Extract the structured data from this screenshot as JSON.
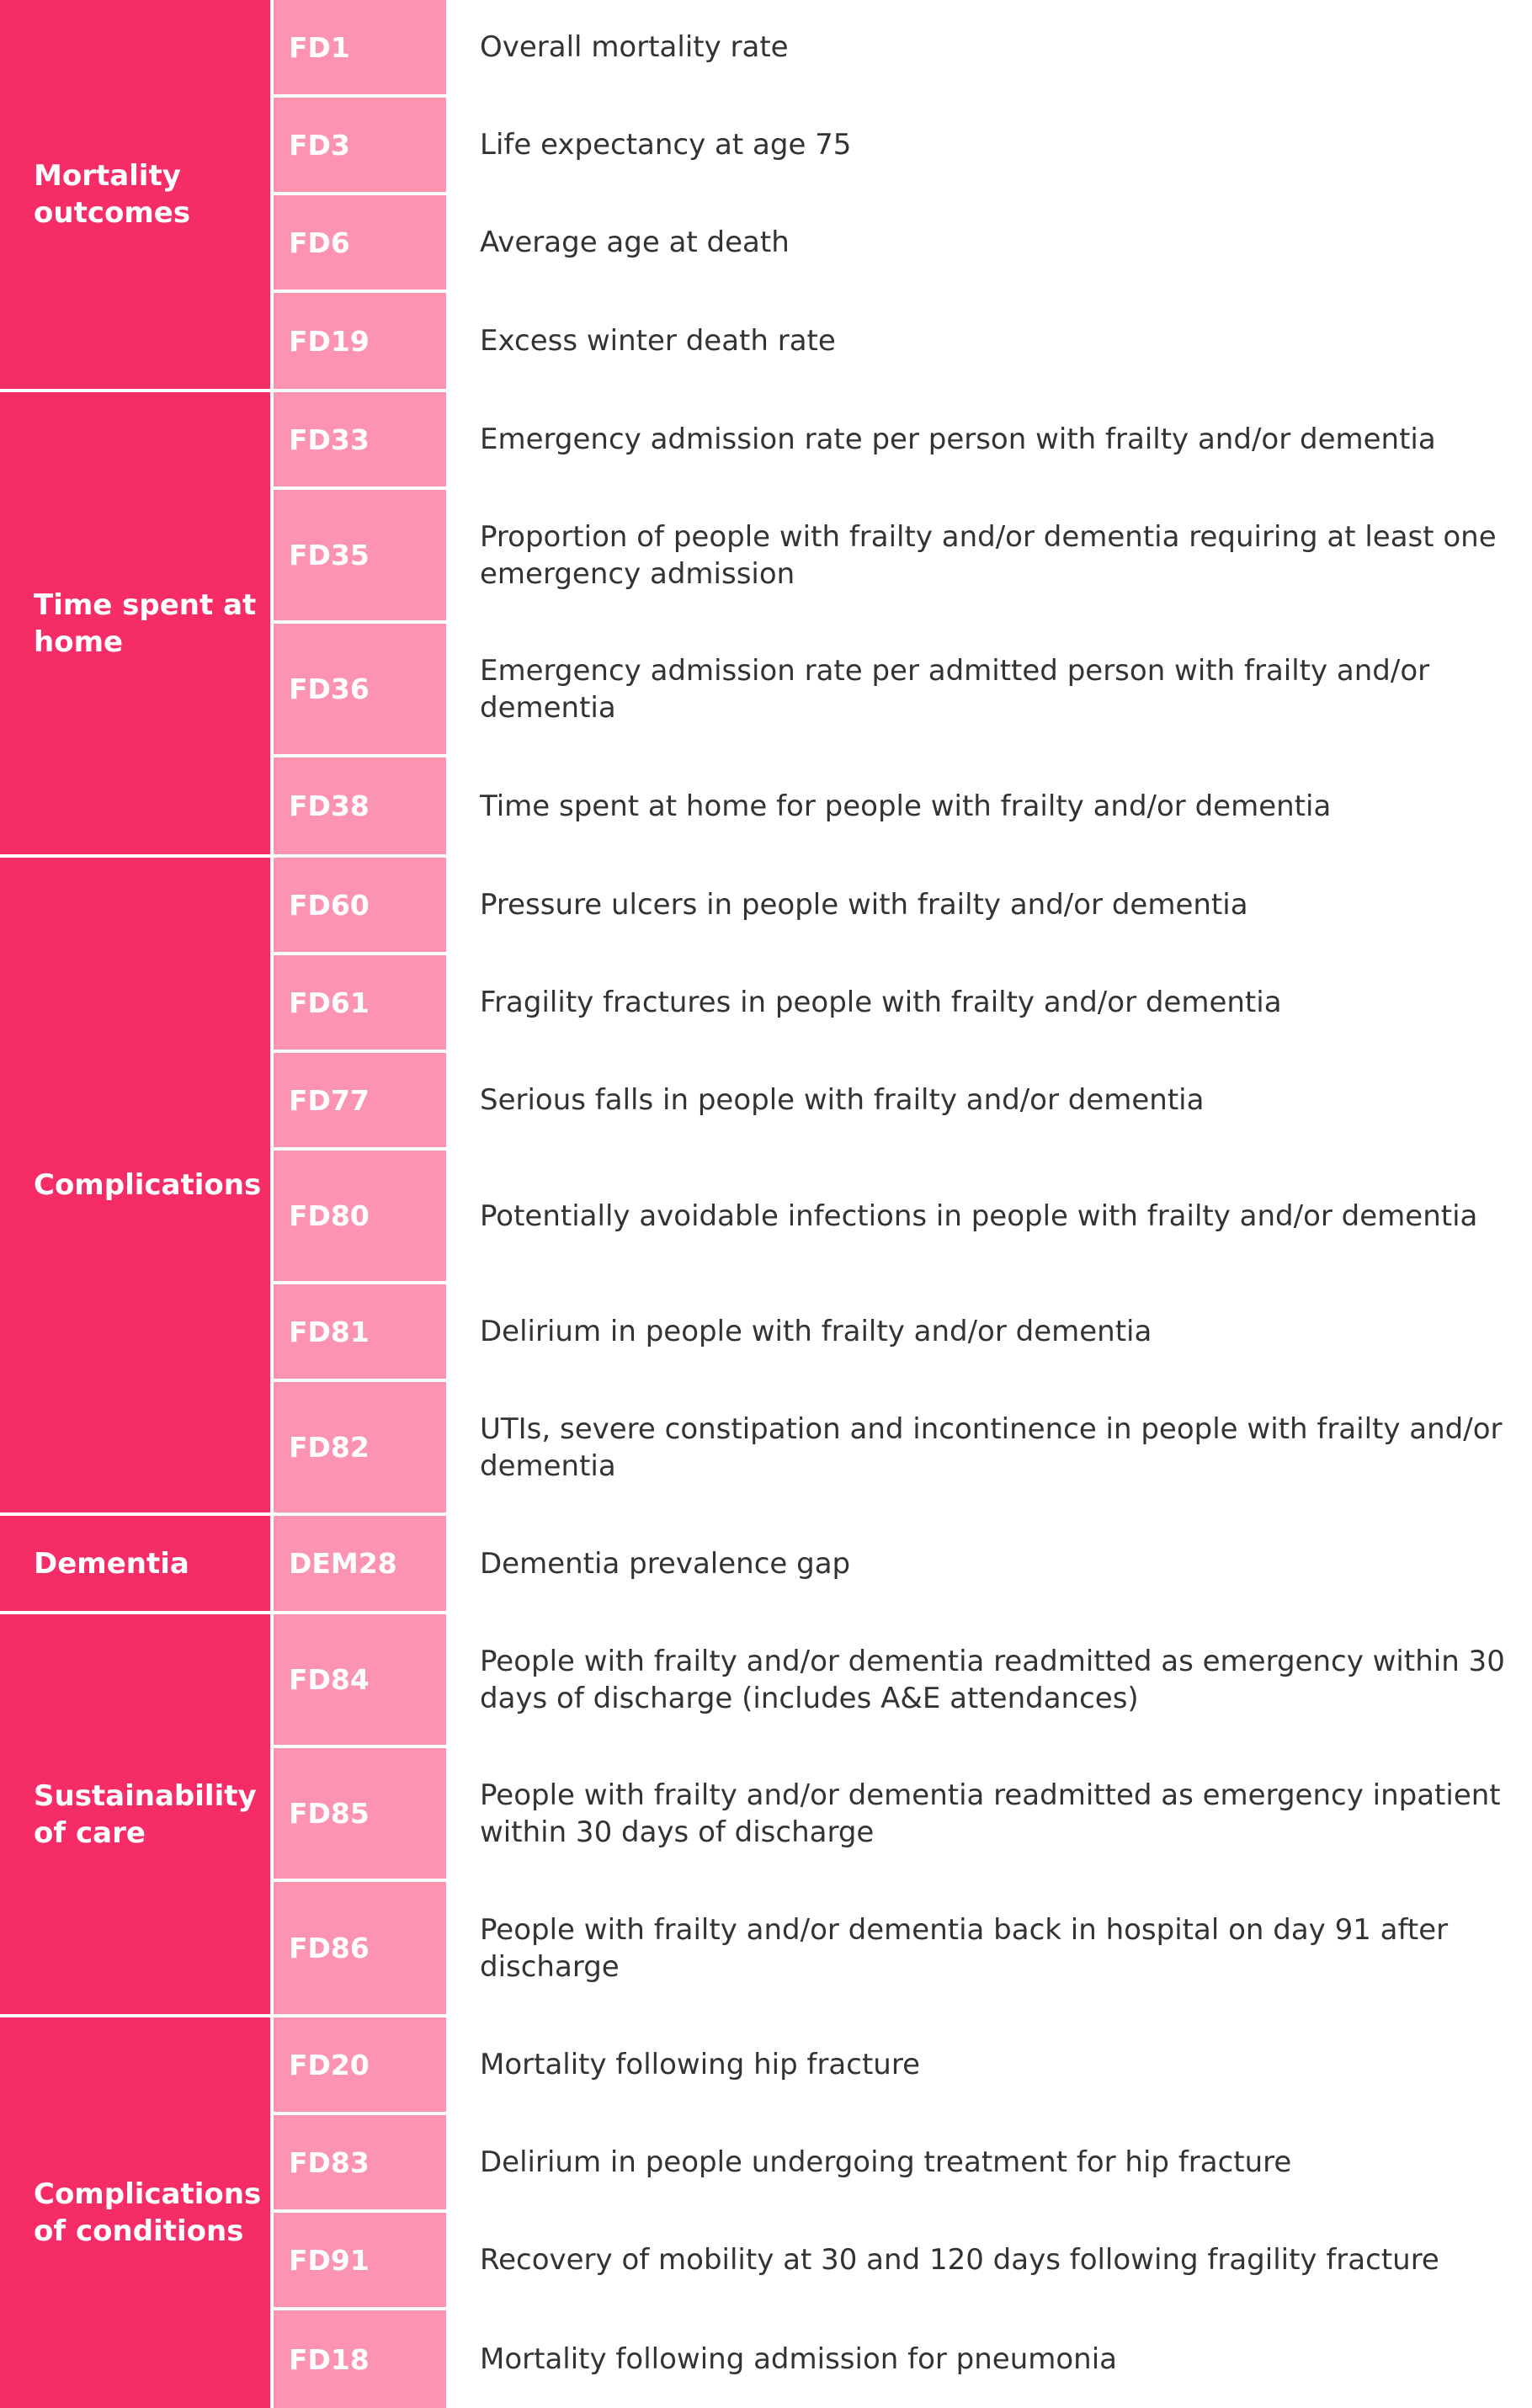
{
  "groups": [
    {
      "label": "Mortality outcomes",
      "rows": [
        {
          "code": "FD1",
          "description": "Overall mortality rate"
        },
        {
          "code": "FD3",
          "description": "Life expectancy at age 75"
        },
        {
          "code": "FD6",
          "description": "Average age at death"
        },
        {
          "code": "FD19",
          "description": "Excess winter death rate"
        }
      ]
    },
    {
      "label": "Time spent at home",
      "rows": [
        {
          "code": "FD33",
          "description": "Emergency admission rate per person with frailty and/or dementia"
        },
        {
          "code": "FD35",
          "description": "Proportion of people with frailty and/or dementia requiring at least one emergency admission"
        },
        {
          "code": "FD36",
          "description": "Emergency admission rate per admitted person with frailty and/or dementia"
        },
        {
          "code": "FD38",
          "description": "Time spent at home for people with frailty and/or dementia"
        }
      ]
    },
    {
      "label": "Complications",
      "rows": [
        {
          "code": "FD60",
          "description": "Pressure ulcers in people with frailty and/or dementia"
        },
        {
          "code": "FD61",
          "description": "Fragility fractures in people with frailty and/or dementia"
        },
        {
          "code": "FD77",
          "description": "Serious falls in people with frailty and/or dementia"
        },
        {
          "code": "FD80",
          "description": "Potentially avoidable infections in people with frailty and/or dementia"
        },
        {
          "code": "FD81",
          "description": "Delirium in people with frailty and/or dementia"
        },
        {
          "code": "FD82",
          "description": "UTIs, severe constipation and incontinence in people with frailty and/or dementia"
        }
      ]
    },
    {
      "label": "Dementia",
      "rows": [
        {
          "code": "DEM28",
          "description": "Dementia prevalence gap"
        }
      ]
    },
    {
      "label": "Sustainability of care",
      "rows": [
        {
          "code": "FD84",
          "description": "People with frailty and/or dementia readmitted as emergency within 30 days of discharge (includes A&E attendances)"
        },
        {
          "code": "FD85",
          "description": "People with frailty and/or dementia readmitted as emergency inpatient within 30 days of discharge"
        },
        {
          "code": "FD86",
          "description": "People with frailty and/or dementia back in hospital on day 91 after discharge"
        }
      ]
    },
    {
      "label": "Complications of conditions",
      "rows": [
        {
          "code": "FD20",
          "description": "Mortality following hip fracture"
        },
        {
          "code": "FD83",
          "description": "Delirium in people undergoing treatment for hip fracture"
        },
        {
          "code": "FD91",
          "description": "Recovery of mobility at 30 and 120 days following fragility fracture"
        },
        {
          "code": "FD18",
          "description": "Mortality following admission for pneumonia"
        }
      ]
    }
  ],
  "colors": {
    "group_fill": "#f52c65",
    "code_fill": "#fc93b0",
    "text": "#333333"
  }
}
